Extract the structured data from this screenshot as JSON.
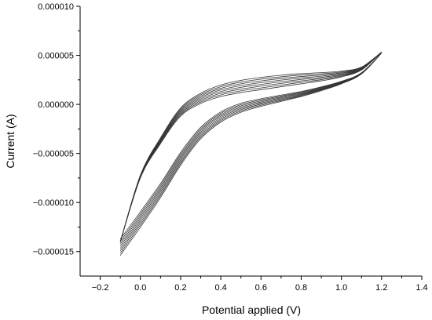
{
  "chart_data": {
    "type": "line",
    "title": "",
    "xlabel": "Potential applied (V)",
    "ylabel": "Current (A)",
    "xlim": [
      -0.3,
      1.4
    ],
    "ylim": [
      -1.75e-05,
      1e-05
    ],
    "x_ticks": [
      -0.2,
      0.0,
      0.2,
      0.4,
      0.6,
      0.8,
      1.0,
      1.2,
      1.4
    ],
    "x_tick_labels": [
      "−0.2",
      "0.0",
      "0.2",
      "0.4",
      "0.6",
      "0.8",
      "1.0",
      "1.2",
      "1.4"
    ],
    "y_ticks": [
      1e-05,
      5e-06,
      0.0,
      -5e-06,
      -1e-05,
      -1.5e-05
    ],
    "y_tick_labels": [
      "0.000010",
      "0.000005",
      "0.000000",
      "−0.000005",
      "−0.000010",
      "−0.000015"
    ],
    "grid": false,
    "line_color": "#333333",
    "anodic_branch": {
      "x": [
        -0.1,
        0.0,
        0.1,
        0.2,
        0.3,
        0.4,
        0.5,
        0.6,
        0.7,
        0.8,
        0.9,
        1.0,
        1.1,
        1.2
      ],
      "base_y": [
        -1.54e-05,
        -1.25e-05,
        -9.5e-06,
        -6.2e-06,
        -3.5e-06,
        -1.8e-06,
        -8e-07,
        -2e-07,
        3e-07,
        8e-07,
        1.4e-06,
        2.1e-06,
        3.1e-06,
        5.3e-06
      ]
    },
    "cathodic_branch": {
      "x": [
        1.2,
        1.1,
        1.0,
        0.9,
        0.8,
        0.7,
        0.6,
        0.5,
        0.4,
        0.3,
        0.2,
        0.1,
        0.0,
        -0.1
      ],
      "base_y": [
        5.3e-06,
        3.5e-06,
        2.8e-06,
        2.4e-06,
        2.1e-06,
        1.8e-06,
        1.5e-06,
        1.2e-06,
        8e-07,
        1e-07,
        -1.2e-06,
        -4e-06,
        -7.5e-06,
        -1.4e-05
      ]
    },
    "series": [
      {
        "cycle": 1,
        "anodic_offset": 0.0,
        "cathodic_offset": 0.0
      },
      {
        "cycle": 2,
        "anodic_offset": 2e-07,
        "cathodic_offset": 2e-07
      },
      {
        "cycle": 3,
        "anodic_offset": 4e-07,
        "cathodic_offset": 4e-07
      },
      {
        "cycle": 4,
        "anodic_offset": 6e-07,
        "cathodic_offset": 6e-07
      },
      {
        "cycle": 5,
        "anodic_offset": 8e-07,
        "cathodic_offset": 8e-07
      },
      {
        "cycle": 6,
        "anodic_offset": 1e-06,
        "cathodic_offset": 1e-06
      },
      {
        "cycle": 7,
        "anodic_offset": 1.2e-06,
        "cathodic_offset": 1.2e-06
      },
      {
        "cycle": 8,
        "anodic_offset": 1.4e-06,
        "cathodic_offset": 1.4e-06
      }
    ]
  }
}
